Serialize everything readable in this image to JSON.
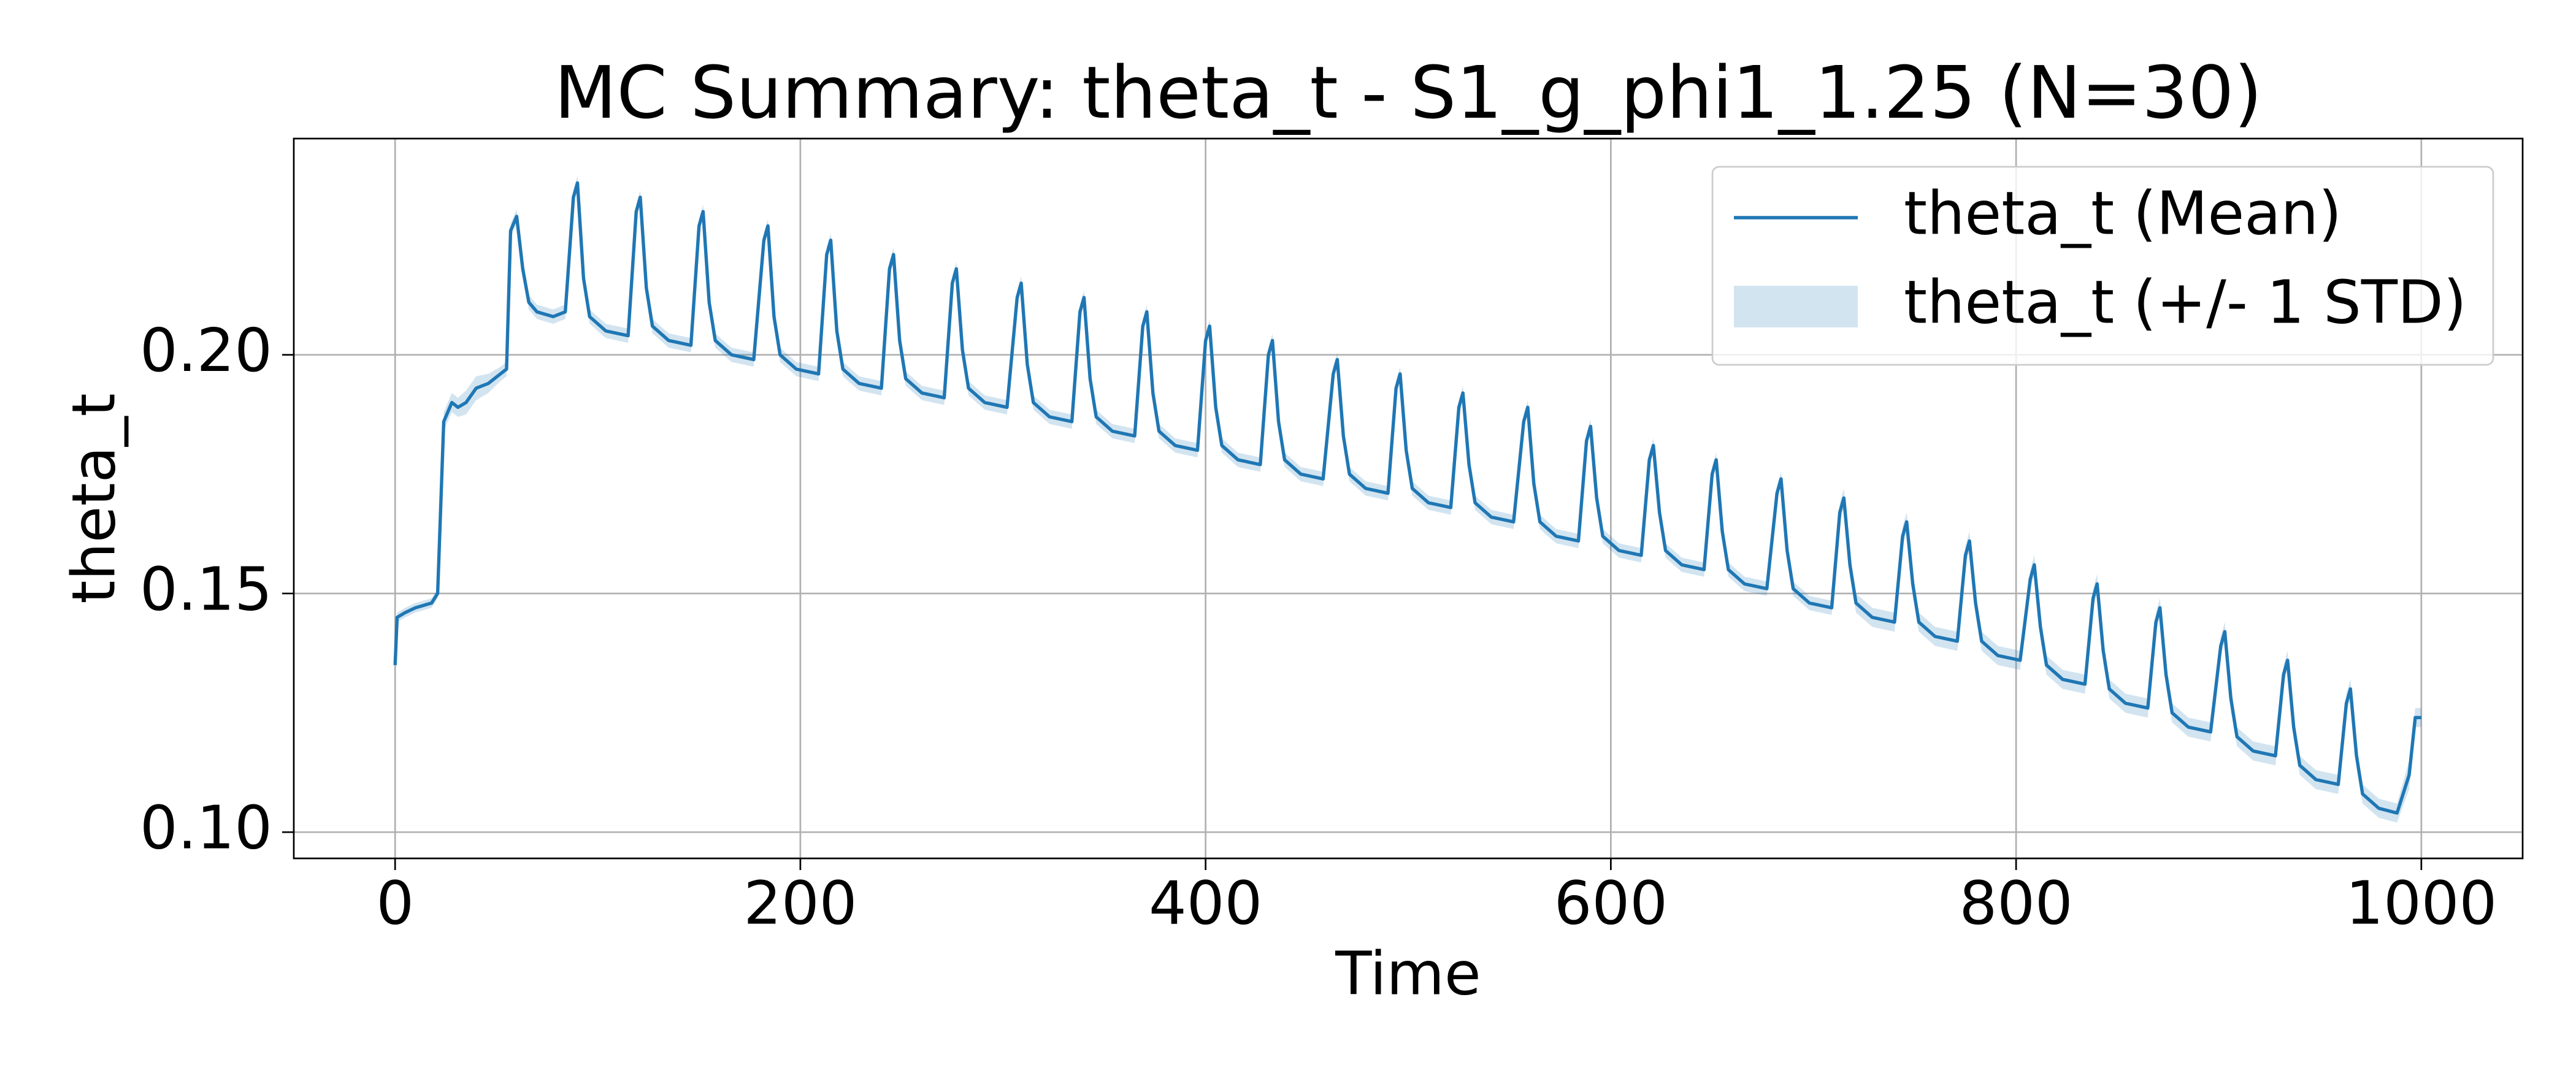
{
  "chart_data": {
    "type": "line",
    "title": "MC Summary: theta_t - S1_g_phi1_1.25 (N=30)",
    "xlabel": "Time",
    "ylabel": "theta_t",
    "xlim": [
      -50,
      1050
    ],
    "ylim": [
      0.0945,
      0.2453
    ],
    "xticks": [
      0,
      200,
      400,
      600,
      800,
      1000
    ],
    "yticks": [
      {
        "value": 0.1,
        "label": "0.10"
      },
      0.15,
      {
        "value": 0.2,
        "label": "0.20"
      }
    ],
    "grid": true,
    "legend": "upper right",
    "x": [
      0,
      1,
      5,
      10,
      18,
      21,
      24,
      28,
      31,
      35,
      40,
      46,
      52,
      55,
      57,
      60,
      63,
      66,
      70,
      78,
      84,
      88,
      90,
      93,
      96,
      104,
      115,
      119,
      121,
      124,
      127,
      135,
      146,
      150,
      152,
      155,
      158,
      166,
      177,
      182,
      184,
      187,
      190,
      198,
      209,
      213,
      215,
      218,
      221,
      229,
      240,
      244,
      246,
      249,
      252,
      260,
      271,
      275,
      277,
      280,
      283,
      291,
      302,
      307,
      309,
      312,
      315,
      323,
      334,
      338,
      340,
      343,
      346,
      354,
      365,
      369,
      371,
      374,
      377,
      385,
      396,
      400,
      402,
      405,
      408,
      416,
      427,
      431,
      433,
      436,
      439,
      447,
      458,
      463,
      465,
      468,
      471,
      479,
      490,
      494,
      496,
      499,
      502,
      510,
      521,
      525,
      527,
      530,
      533,
      541,
      552,
      557,
      559,
      562,
      565,
      573,
      584,
      588,
      590,
      593,
      596,
      604,
      615,
      619,
      621,
      624,
      627,
      635,
      646,
      650,
      652,
      655,
      658,
      666,
      677,
      682,
      684,
      687,
      690,
      698,
      709,
      713,
      715,
      718,
      721,
      729,
      740,
      744,
      746,
      749,
      752,
      760,
      771,
      775,
      777,
      780,
      783,
      791,
      802,
      807,
      809,
      812,
      815,
      823,
      834,
      838,
      840,
      843,
      846,
      854,
      865,
      869,
      871,
      874,
      877,
      885,
      896,
      901,
      903,
      906,
      909,
      917,
      928,
      932,
      934,
      937,
      940,
      948,
      959,
      963,
      965,
      968,
      971,
      979,
      988,
      994,
      997,
      1000
    ],
    "series": [
      {
        "name": "theta_t (Mean)",
        "color": "#1f77b4",
        "values": [
          0.135,
          0.145,
          0.146,
          0.147,
          0.148,
          0.15,
          0.186,
          0.19,
          0.189,
          0.19,
          0.193,
          0.194,
          0.196,
          0.197,
          0.226,
          0.229,
          0.218,
          0.211,
          0.209,
          0.208,
          0.209,
          0.233,
          0.236,
          0.216,
          0.208,
          0.205,
          0.204,
          0.23,
          0.233,
          0.214,
          0.206,
          0.203,
          0.202,
          0.227,
          0.23,
          0.211,
          0.203,
          0.2,
          0.199,
          0.224,
          0.227,
          0.208,
          0.2,
          0.197,
          0.196,
          0.221,
          0.224,
          0.205,
          0.197,
          0.194,
          0.193,
          0.218,
          0.221,
          0.203,
          0.195,
          0.192,
          0.191,
          0.215,
          0.218,
          0.201,
          0.193,
          0.19,
          0.189,
          0.212,
          0.215,
          0.198,
          0.19,
          0.187,
          0.186,
          0.209,
          0.212,
          0.195,
          0.187,
          0.184,
          0.183,
          0.206,
          0.209,
          0.192,
          0.184,
          0.181,
          0.18,
          0.203,
          0.206,
          0.189,
          0.181,
          0.178,
          0.177,
          0.2,
          0.203,
          0.186,
          0.178,
          0.175,
          0.174,
          0.196,
          0.199,
          0.183,
          0.175,
          0.172,
          0.171,
          0.193,
          0.196,
          0.18,
          0.172,
          0.169,
          0.168,
          0.189,
          0.192,
          0.177,
          0.169,
          0.166,
          0.165,
          0.186,
          0.189,
          0.173,
          0.165,
          0.162,
          0.161,
          0.182,
          0.185,
          0.17,
          0.162,
          0.159,
          0.158,
          0.178,
          0.181,
          0.167,
          0.159,
          0.156,
          0.155,
          0.175,
          0.178,
          0.163,
          0.155,
          0.152,
          0.151,
          0.171,
          0.174,
          0.159,
          0.151,
          0.148,
          0.147,
          0.167,
          0.17,
          0.156,
          0.148,
          0.145,
          0.144,
          0.162,
          0.165,
          0.152,
          0.144,
          0.141,
          0.14,
          0.158,
          0.161,
          0.148,
          0.14,
          0.137,
          0.136,
          0.153,
          0.156,
          0.143,
          0.135,
          0.132,
          0.131,
          0.149,
          0.152,
          0.138,
          0.13,
          0.127,
          0.126,
          0.144,
          0.147,
          0.133,
          0.125,
          0.122,
          0.121,
          0.139,
          0.142,
          0.128,
          0.12,
          0.117,
          0.116,
          0.133,
          0.136,
          0.122,
          0.114,
          0.111,
          0.11,
          0.127,
          0.13,
          0.116,
          0.108,
          0.105,
          0.104,
          0.112,
          0.124,
          0.124
        ]
      },
      {
        "name": "theta_t (+/- 1 STD)",
        "color": "#1f77b4",
        "std": [
          0.001,
          0.001,
          0.001,
          0.001,
          0.001,
          0.001,
          0.002,
          0.002,
          0.002,
          0.0025,
          0.0025,
          0.002,
          0.0015,
          0.0015,
          0.0015,
          0.0015,
          0.0015,
          0.0015,
          0.0015,
          0.0015,
          0.0015,
          0.0015,
          0.0015,
          0.002,
          0.0015,
          0.0015,
          0.0015,
          0.0015,
          0.0015,
          0.002,
          0.0015,
          0.0015,
          0.0015,
          0.0015,
          0.0015,
          0.002,
          0.0015,
          0.0015,
          0.0015,
          0.0015,
          0.0015,
          0.002,
          0.0015,
          0.0015,
          0.0015,
          0.0015,
          0.0015,
          0.002,
          0.0015,
          0.0015,
          0.0015,
          0.0015,
          0.0015,
          0.002,
          0.0015,
          0.0015,
          0.0015,
          0.0015,
          0.0015,
          0.002,
          0.0015,
          0.0015,
          0.0015,
          0.0015,
          0.0015,
          0.002,
          0.0015,
          0.0015,
          0.0015,
          0.0015,
          0.0015,
          0.002,
          0.0015,
          0.0015,
          0.0015,
          0.0015,
          0.0015,
          0.002,
          0.0015,
          0.0015,
          0.0015,
          0.0015,
          0.0015,
          0.002,
          0.0015,
          0.0015,
          0.0015,
          0.0015,
          0.0015,
          0.002,
          0.0015,
          0.0015,
          0.0015,
          0.0015,
          0.0015,
          0.002,
          0.0015,
          0.0015,
          0.0015,
          0.0015,
          0.0015,
          0.002,
          0.0015,
          0.0015,
          0.0015,
          0.0015,
          0.0015,
          0.002,
          0.0015,
          0.0015,
          0.0015,
          0.0015,
          0.0015,
          0.002,
          0.0015,
          0.0015,
          0.0015,
          0.0015,
          0.0015,
          0.002,
          0.0015,
          0.0015,
          0.0015,
          0.0015,
          0.0015,
          0.002,
          0.0015,
          0.0015,
          0.0015,
          0.0015,
          0.0015,
          0.002,
          0.0015,
          0.0015,
          0.0015,
          0.0015,
          0.0015,
          0.002,
          0.0015,
          0.0015,
          0.0015,
          0.002,
          0.002,
          0.0025,
          0.002,
          0.002,
          0.002,
          0.002,
          0.002,
          0.0025,
          0.002,
          0.002,
          0.002,
          0.002,
          0.002,
          0.0025,
          0.002,
          0.002,
          0.002,
          0.002,
          0.002,
          0.0025,
          0.002,
          0.002,
          0.002,
          0.002,
          0.002,
          0.0025,
          0.002,
          0.002,
          0.002,
          0.002,
          0.002,
          0.0025,
          0.002,
          0.002,
          0.002,
          0.002,
          0.002,
          0.0025,
          0.002,
          0.002,
          0.002,
          0.002,
          0.002,
          0.0025,
          0.002,
          0.002,
          0.002,
          0.002,
          0.002,
          0.0025,
          0.002,
          0.002,
          0.002,
          0.003,
          0.002,
          0.002
        ]
      }
    ]
  }
}
